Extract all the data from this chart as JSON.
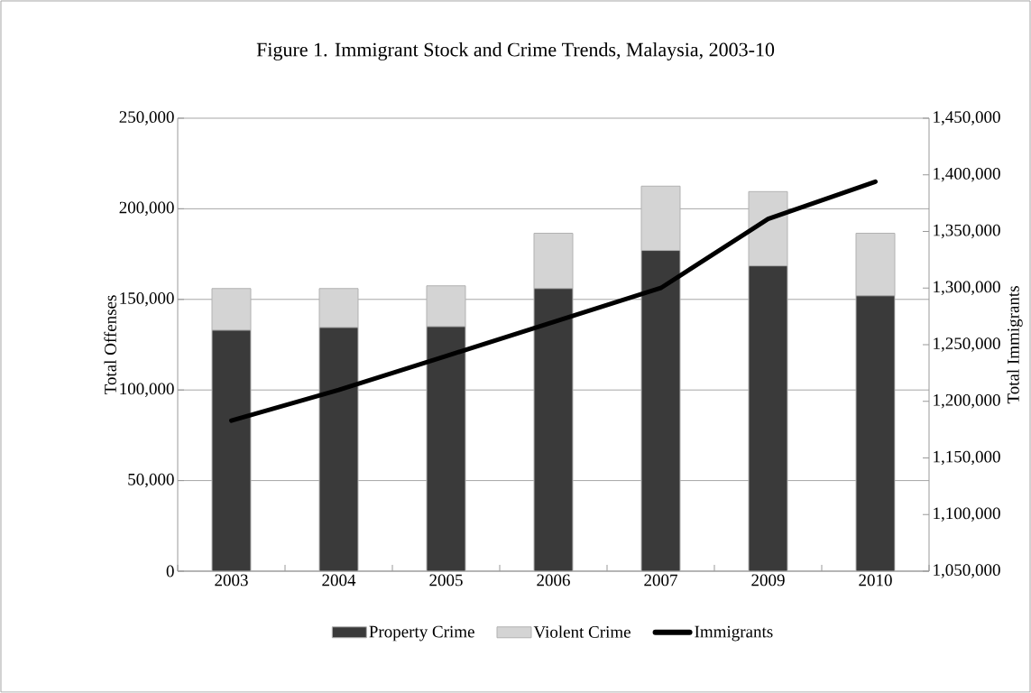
{
  "chart_data": {
    "type": "bar",
    "stacked": true,
    "title": "Figure 1. Immigrant Stock and Crime Trends, Malaysia, 2003-10",
    "ylabel": "Total Offenses",
    "y2label": "Total Immigrants",
    "categories": [
      "2003",
      "2004",
      "2005",
      "2006",
      "2007",
      "2009",
      "2010"
    ],
    "series": [
      {
        "name": "Property Crime",
        "color": "#3a3a3a",
        "values": [
          133000,
          134500,
          135000,
          156000,
          177000,
          168500,
          152000
        ]
      },
      {
        "name": "Violent Crime",
        "color": "#d4d4d4",
        "values": [
          23000,
          21500,
          22500,
          30500,
          35500,
          41000,
          34500
        ]
      },
      {
        "name": "Immigrants",
        "type": "line",
        "axis": "y2",
        "color": "#000000",
        "values": [
          1183000,
          1210000,
          1240000,
          1270000,
          1300000,
          1361000,
          1394000
        ]
      }
    ],
    "ylim": [
      0,
      250000
    ],
    "yticks": [
      {
        "value": 0,
        "label": "0"
      },
      {
        "value": 50000,
        "label": "50,000"
      },
      {
        "value": 100000,
        "label": "100,000"
      },
      {
        "value": 150000,
        "label": "150,000"
      },
      {
        "value": 200000,
        "label": "200,000"
      },
      {
        "value": 250000,
        "label": "250,000"
      }
    ],
    "y2lim": [
      1050000,
      1450000
    ],
    "y2ticks": [
      {
        "value": 1050000,
        "label": "1,050,000"
      },
      {
        "value": 1100000,
        "label": "1,100,000"
      },
      {
        "value": 1150000,
        "label": "1,150,000"
      },
      {
        "value": 1200000,
        "label": "1,200,000"
      },
      {
        "value": 1250000,
        "label": "1,250,000"
      },
      {
        "value": 1300000,
        "label": "1,300,000"
      },
      {
        "value": 1350000,
        "label": "1,350,000"
      },
      {
        "value": 1400000,
        "label": "1,400,000"
      },
      {
        "value": 1450000,
        "label": "1,450,000"
      }
    ],
    "grid": "y",
    "legend": "bottom",
    "marker": "none"
  }
}
